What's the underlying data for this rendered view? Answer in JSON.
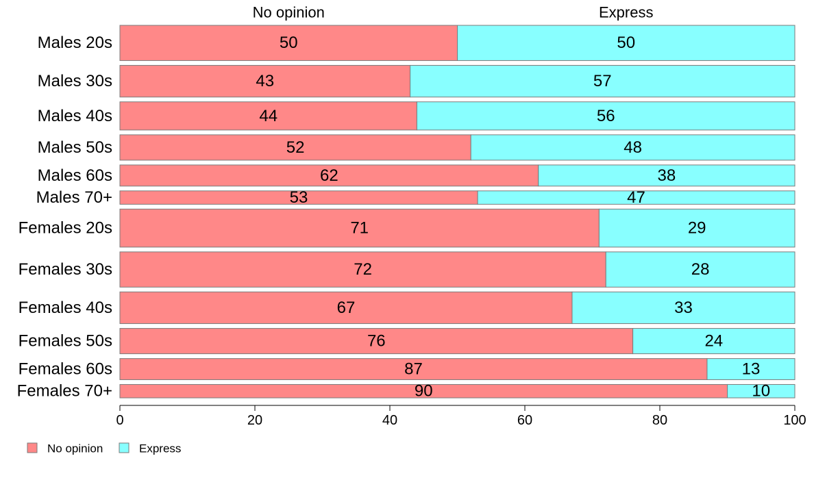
{
  "chart_data": {
    "type": "bar",
    "orientation": "horizontal",
    "stacked": true,
    "categories": [
      "Males 20s",
      "Males 30s",
      "Males 40s",
      "Males 50s",
      "Males 60s",
      "Males 70+",
      "Females 20s",
      "Females 30s",
      "Females 40s",
      "Females 50s",
      "Females 60s",
      "Females 70+"
    ],
    "relative_widths": [
      1.0,
      0.9,
      0.8,
      0.72,
      0.6,
      0.38,
      1.08,
      1.0,
      0.9,
      0.72,
      0.6,
      0.38
    ],
    "series": [
      {
        "name": "No opinion",
        "color": "#ff8888",
        "values": [
          50,
          43,
          44,
          52,
          62,
          53,
          71,
          72,
          67,
          76,
          87,
          90
        ]
      },
      {
        "name": "Express",
        "color": "#88ffff",
        "values": [
          50,
          57,
          56,
          48,
          38,
          47,
          29,
          28,
          33,
          24,
          13,
          10
        ]
      }
    ],
    "top_labels": [
      "No opinion",
      "Express"
    ],
    "xlim": [
      0,
      100
    ],
    "xticks": [
      0,
      20,
      40,
      60,
      80,
      100
    ],
    "xlabel": "",
    "ylabel": "",
    "title": "",
    "grid": false,
    "legend": {
      "position": "bottom-left",
      "entries": [
        "No opinion",
        "Express"
      ]
    }
  }
}
